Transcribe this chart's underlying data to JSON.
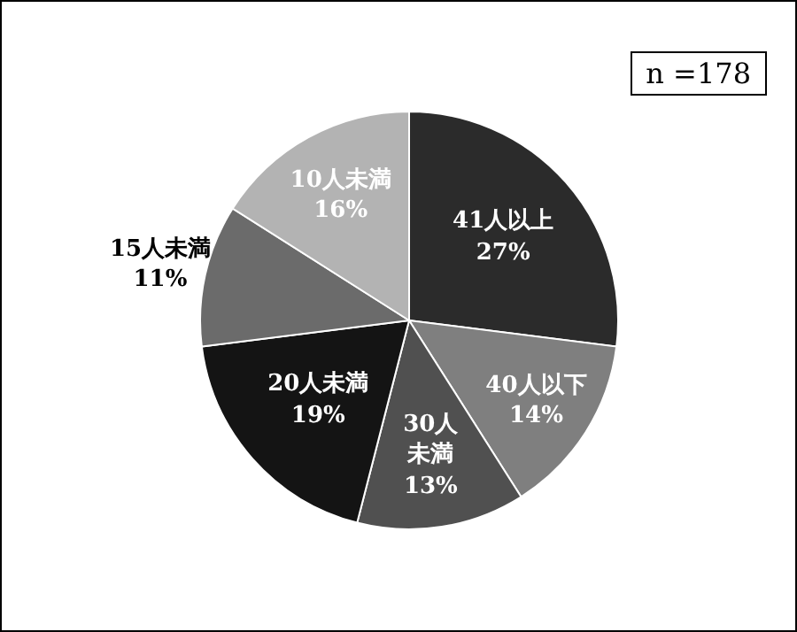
{
  "chart_data": {
    "type": "pie",
    "categories": [
      "41人以上",
      "40人以下",
      "30人未満",
      "20人未満",
      "15人未満",
      "10人未満"
    ],
    "values": [
      27,
      14,
      13,
      19,
      11,
      16
    ],
    "value_labels": [
      "27%",
      "14%",
      "13%",
      "19%",
      "11%",
      "16%"
    ],
    "colors": [
      "#2b2b2b",
      "#7f7f7f",
      "#505050",
      "#141414",
      "#6b6b6b",
      "#b3b3b3"
    ],
    "annotations": [
      "n =178"
    ]
  }
}
